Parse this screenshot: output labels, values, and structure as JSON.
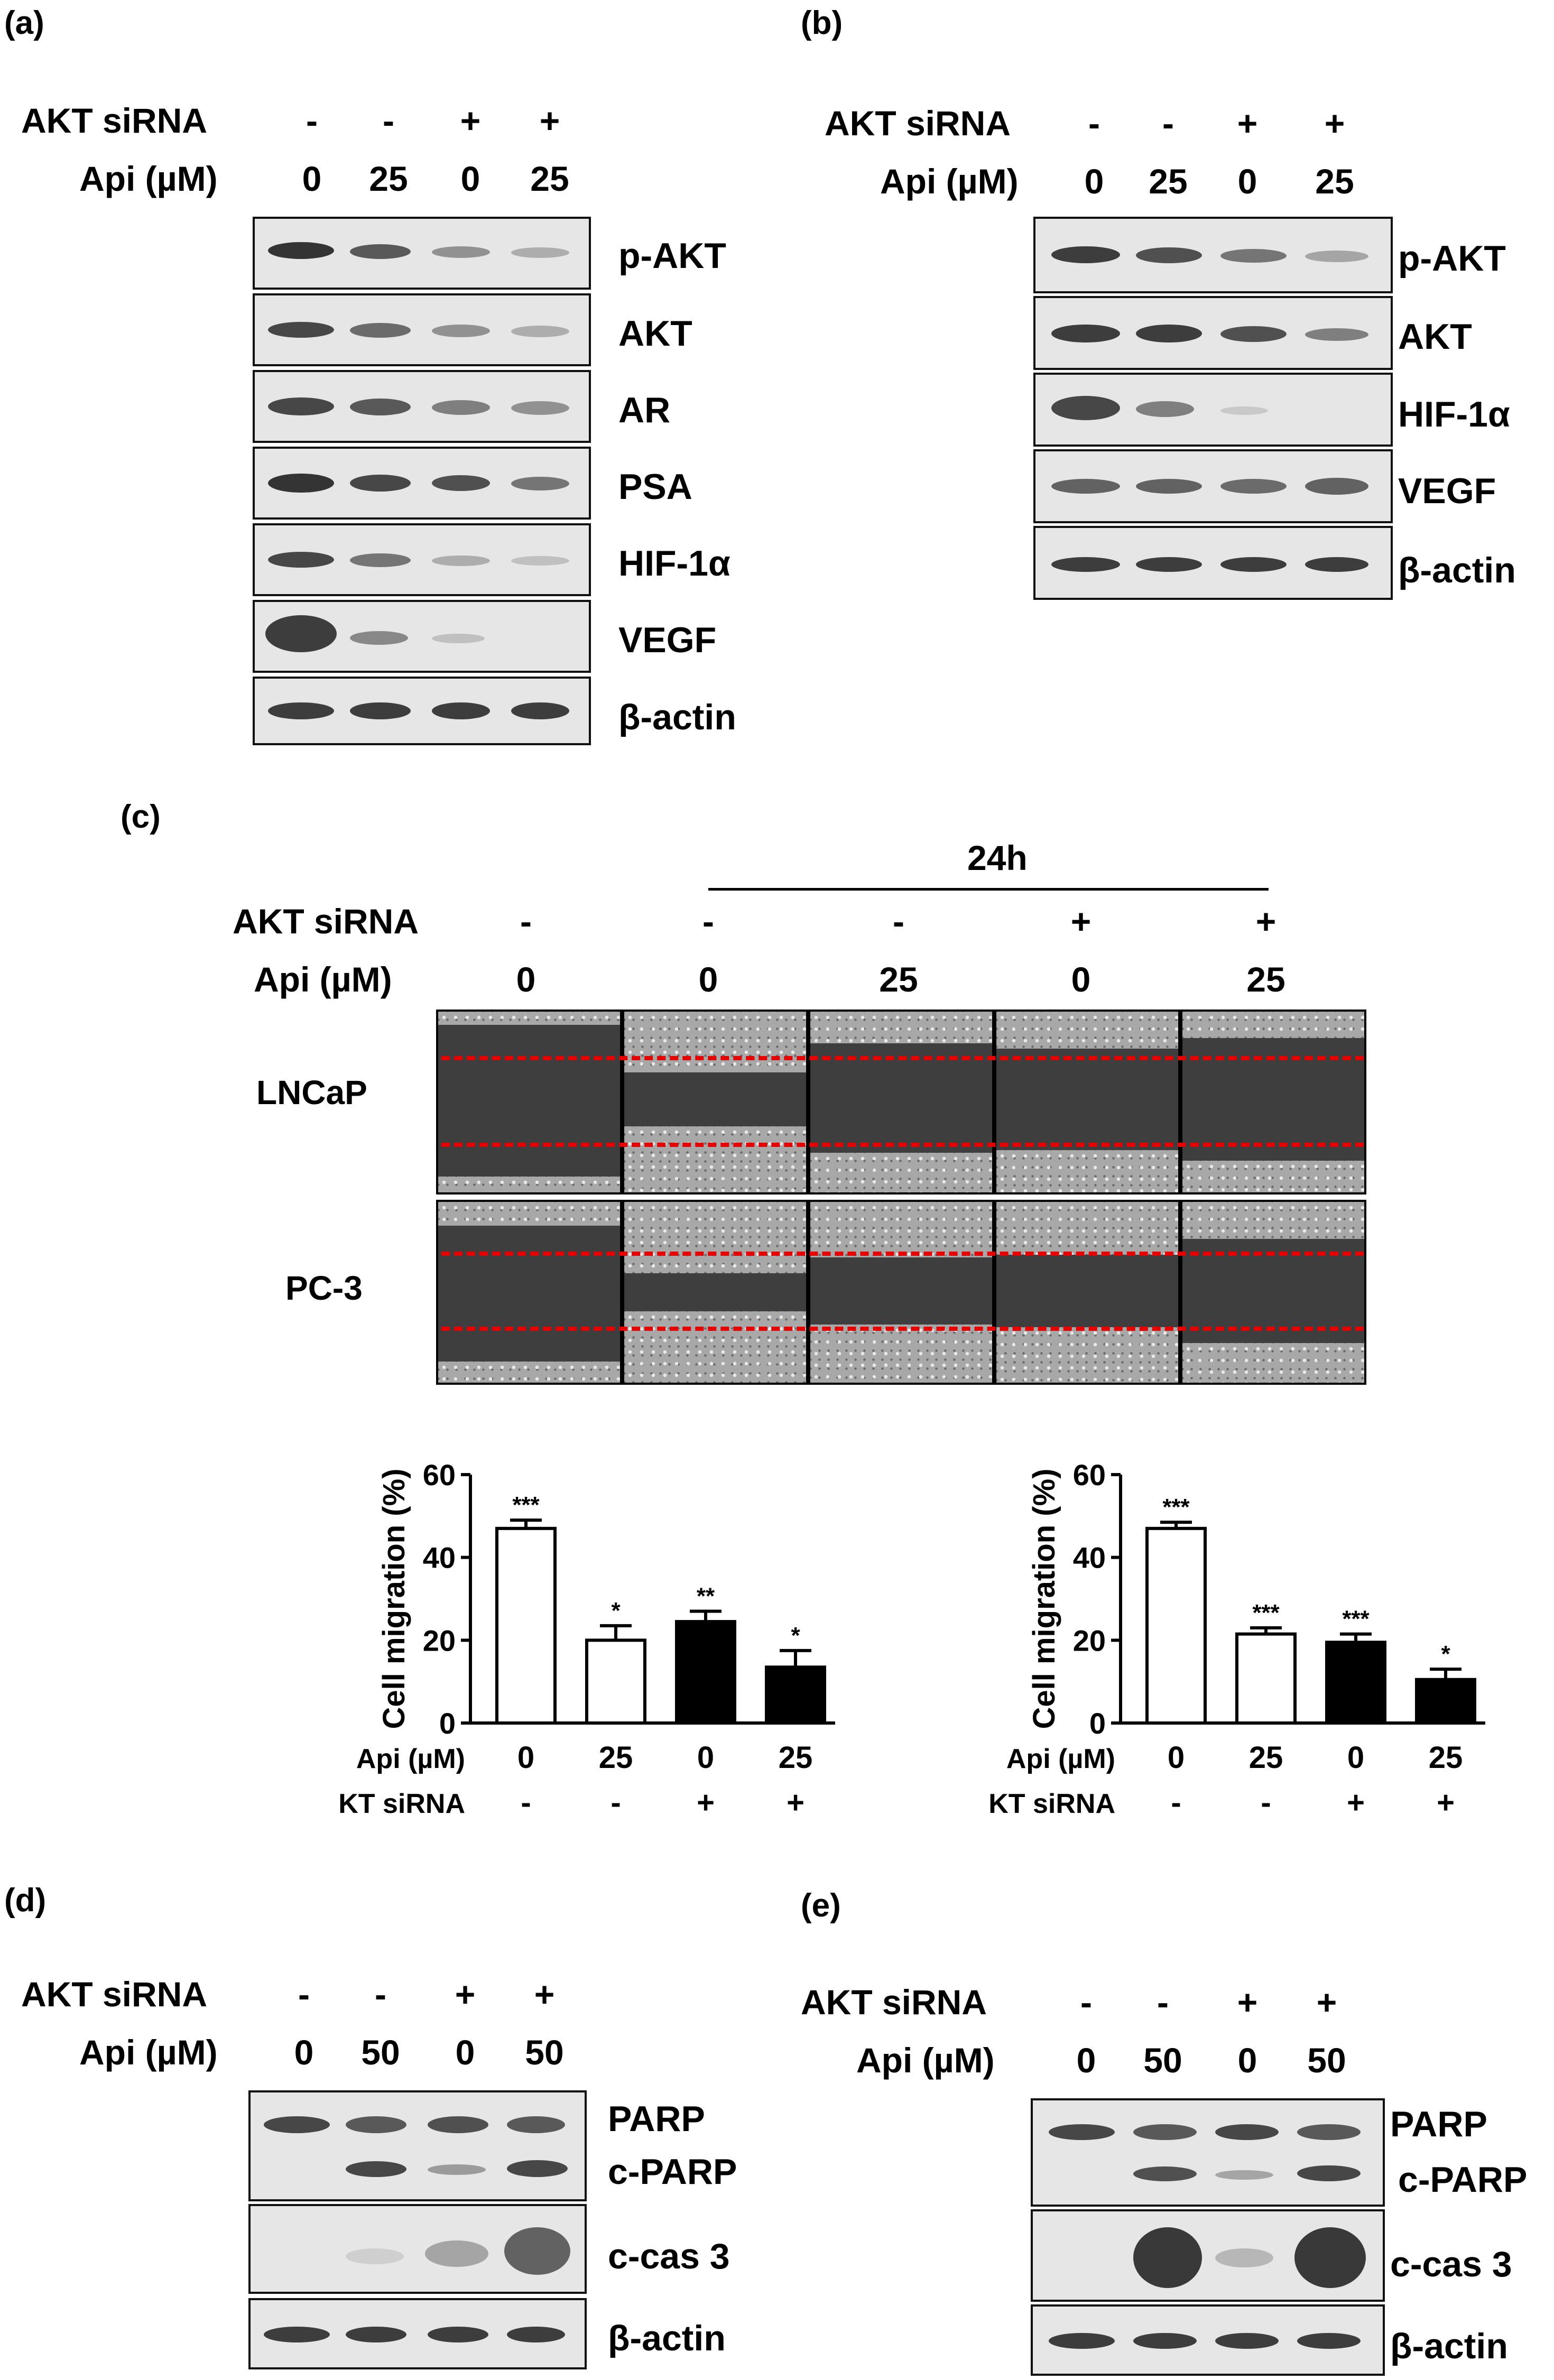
{
  "panels": {
    "a": {
      "label": "(a)",
      "akt_sirna_label": "AKT siRNA",
      "api_label": "Api (µM)",
      "akt": [
        "-",
        "-",
        "+",
        "+"
      ],
      "api": [
        "0",
        "25",
        "0",
        "25"
      ],
      "bands": [
        "p-AKT",
        "AKT",
        "AR",
        "PSA",
        "HIF-1α",
        "VEGF",
        "β-actin"
      ]
    },
    "b": {
      "label": "(b)",
      "akt_sirna_label": "AKT siRNA",
      "api_label": "Api (µM)",
      "akt": [
        "-",
        "-",
        "+",
        "+"
      ],
      "api": [
        "0",
        "25",
        "0",
        "25"
      ],
      "bands": [
        "p-AKT",
        "AKT",
        "HIF-1α",
        "VEGF",
        "β-actin"
      ]
    },
    "c": {
      "label": "(c)",
      "time_label": "24h",
      "akt_sirna_label": "AKT siRNA",
      "api_label": "Api (µM)",
      "akt": [
        "-",
        "-",
        "-",
        "+",
        "+"
      ],
      "api": [
        "0",
        "0",
        "25",
        "0",
        "25"
      ],
      "cell_lines": [
        "LNCaP",
        "PC-3"
      ]
    },
    "d": {
      "label": "(d)",
      "akt_sirna_label": "AKT siRNA",
      "api_label": "Api (µM)",
      "akt": [
        "-",
        "-",
        "+",
        "+"
      ],
      "api": [
        "0",
        "50",
        "0",
        "50"
      ],
      "bands": [
        "PARP",
        "c-PARP",
        "c-cas 3",
        "β-actin"
      ]
    },
    "e": {
      "label": "(e)",
      "akt_sirna_label": "AKT siRNA",
      "api_label": "Api (µM)",
      "akt": [
        "-",
        "-",
        "+",
        "+"
      ],
      "api": [
        "0",
        "50",
        "0",
        "50"
      ],
      "bands": [
        "PARP",
        "c-PARP",
        "c-cas 3",
        "β-actin"
      ]
    }
  },
  "chart_data": [
    {
      "type": "bar",
      "ylabel": "Cell migration (%)",
      "ylim": [
        0,
        60
      ],
      "yticks": [
        0,
        20,
        40,
        60
      ],
      "row_labels": [
        "Api (µM)",
        "AKT siRNA"
      ],
      "categories_api": [
        "0",
        "25",
        "0",
        "25"
      ],
      "categories_akt": [
        "-",
        "-",
        "+",
        "+"
      ],
      "values": [
        47,
        20,
        24.5,
        13.5
      ],
      "errors": [
        2,
        3.5,
        2.5,
        4
      ],
      "fills": [
        "#ffffff",
        "#ffffff",
        "#000000",
        "#000000"
      ],
      "significance": [
        "***",
        "*",
        "**",
        "*"
      ]
    },
    {
      "type": "bar",
      "ylabel": "Cell migration (%)",
      "ylim": [
        0,
        60
      ],
      "yticks": [
        0,
        20,
        40,
        60
      ],
      "row_labels": [
        "Api (µM)",
        "AKT siRNA"
      ],
      "categories_api": [
        "0",
        "25",
        "0",
        "25"
      ],
      "categories_akt": [
        "-",
        "-",
        "+",
        "+"
      ],
      "values": [
        47,
        21.5,
        19.5,
        10.5
      ],
      "errors": [
        1.5,
        1.5,
        2,
        2.5
      ],
      "fills": [
        "#ffffff",
        "#ffffff",
        "#000000",
        "#000000"
      ],
      "significance": [
        "***",
        "***",
        "***",
        "*"
      ]
    }
  ]
}
